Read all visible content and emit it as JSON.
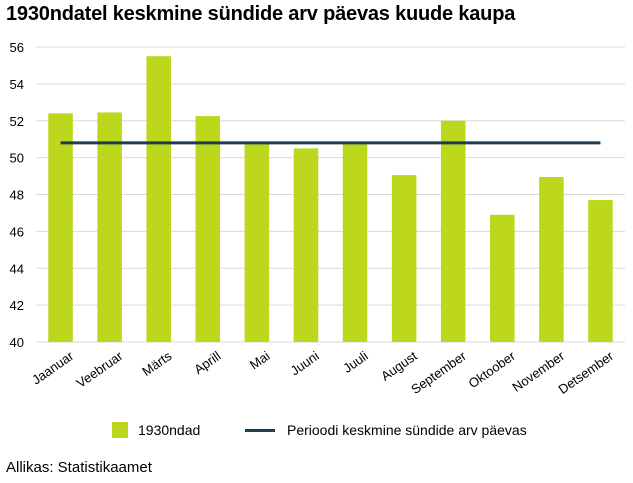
{
  "title": "1930ndatel keskmine sündide arv päevas kuude kaupa",
  "source": "Allikas: Statistikaamet",
  "colors": {
    "bar": "#bdd71c",
    "line": "#1b3f4e",
    "grid": "#d9d9d9"
  },
  "chart_data": {
    "type": "bar",
    "categories": [
      "Jaanuar",
      "Veebruar",
      "Märts",
      "Aprill",
      "Mai",
      "Juuni",
      "Juuli",
      "August",
      "September",
      "Oktoober",
      "November",
      "Detsember"
    ],
    "series": [
      {
        "name": "1930ndad",
        "type": "bar",
        "values": [
          52.4,
          52.45,
          55.5,
          52.25,
          50.8,
          50.5,
          50.8,
          49.05,
          52.0,
          46.9,
          48.95,
          47.7
        ]
      },
      {
        "name": "Perioodi keskmine sündide arv päevas",
        "type": "line",
        "values": [
          50.8,
          50.8,
          50.8,
          50.8,
          50.8,
          50.8,
          50.8,
          50.8,
          50.8,
          50.8,
          50.8,
          50.8
        ]
      }
    ],
    "yticks": [
      "40",
      "42",
      "44",
      "46",
      "48",
      "50",
      "52",
      "54",
      "56"
    ],
    "ylim": [
      40,
      56
    ],
    "grid": true,
    "legend_position": "bottom"
  }
}
